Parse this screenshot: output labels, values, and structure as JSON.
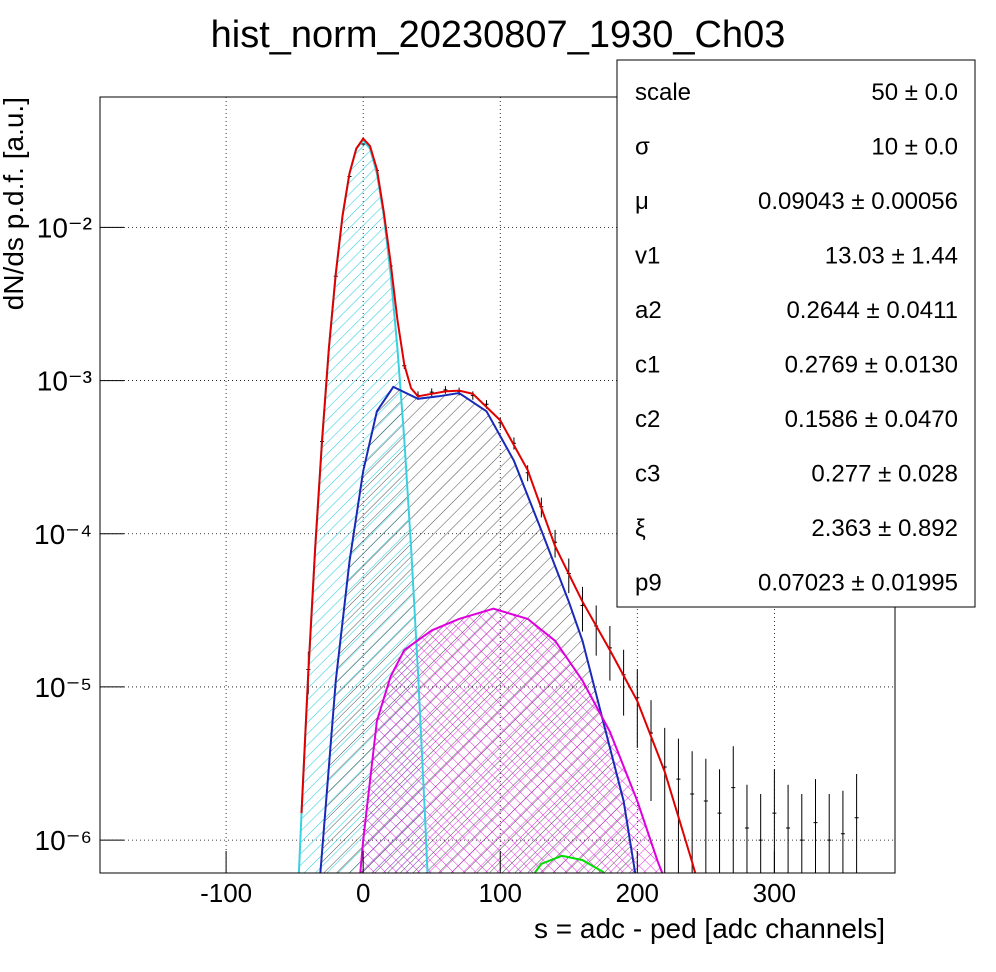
{
  "chart_data": {
    "type": "line",
    "title": "hist_norm_20230807_1930_Ch03",
    "x_label": "s = adc - ped [adc channels]",
    "y_label": "dN/ds p.d.f. [a.u.]",
    "log_y": true,
    "grid": true,
    "xlim": [
      -192,
      388
    ],
    "ylim": [
      6.1e-07,
      0.071
    ],
    "xticks": [
      -100,
      0,
      100,
      200,
      300
    ],
    "yticks": [
      {
        "value": 1e-06,
        "label": "10⁻⁶"
      },
      {
        "value": 1e-05,
        "label": "10⁻⁵"
      },
      {
        "value": 0.0001,
        "label": "10⁻⁴"
      },
      {
        "value": 0.001,
        "label": "10⁻³"
      },
      {
        "value": 0.01,
        "label": "10⁻²"
      }
    ],
    "series": [
      {
        "color": "#000000",
        "x": [
          -40,
          -30,
          -20,
          -10,
          0,
          10,
          20,
          30,
          40,
          50,
          60,
          70,
          80,
          90,
          100,
          110,
          120,
          130,
          140,
          150,
          160,
          170,
          180,
          190,
          200,
          210,
          220,
          230,
          240,
          250,
          260,
          270,
          280,
          290,
          300,
          310,
          320,
          330,
          340,
          350,
          360
        ],
        "values": [
          1.3e-05,
          0.0004,
          0.0048,
          0.0215,
          0.035,
          0.0235,
          0.0056,
          0.00125,
          0.0008,
          0.00084,
          0.00087,
          0.00085,
          0.0008,
          0.0007,
          0.00053,
          0.00039,
          0.00025,
          0.00015,
          8.8e-05,
          5.5e-05,
          3.4e-05,
          2.5e-05,
          1.8e-05,
          1.2e-05,
          8.5e-06,
          5e-06,
          3e-06,
          2.5e-06,
          2e-06,
          1.8e-06,
          1.5e-06,
          2.2e-06,
          1.2e-06,
          1e-06,
          1.5e-06,
          1.2e-06,
          1e-06,
          1.3e-06,
          1e-06,
          1.1e-06,
          1.4e-06
        ],
        "errors": [
          4e-06,
          3e-05,
          0.0001,
          0.0003,
          0.0004,
          0.0003,
          0.00012,
          6e-05,
          5e-05,
          5e-05,
          5e-05,
          5e-05,
          5e-05,
          4.5e-05,
          4e-05,
          3.5e-05,
          3e-05,
          2.2e-05,
          1.8e-05,
          1.4e-05,
          1.1e-05,
          9e-06,
          7e-06,
          5.5e-06,
          4.5e-06,
          3.2e-06,
          2.4e-06,
          2.1e-06,
          1.8e-06,
          1.6e-06,
          1.4e-06,
          1.9e-06,
          1.1e-06,
          1e-06,
          1.4e-06,
          1.1e-06,
          1e-06,
          1.2e-06,
          1e-06,
          1e-06,
          1.3e-06
        ]
      },
      {
        "color": "#3ad0e0",
        "fill": "hatch",
        "x": [
          -48,
          -45,
          -40,
          -35,
          -30,
          -25,
          -20,
          -15,
          -10,
          -5,
          0,
          5,
          10,
          15,
          20,
          25,
          30,
          35,
          40,
          45,
          48
        ],
        "values": [
          3.7e-07,
          1.48e-06,
          1.24e-05,
          8.1e-05,
          0.000411,
          0.00163,
          0.005,
          0.012,
          0.0225,
          0.0327,
          0.037,
          0.0327,
          0.0225,
          0.012,
          0.005,
          0.00163,
          0.000411,
          8.1e-05,
          1.24e-05,
          1.48e-06,
          3.7e-07
        ]
      },
      {
        "color": "#1a2ab8",
        "fill": "hatch",
        "x": [
          -32,
          -20,
          -10,
          0,
          10,
          22,
          40,
          55,
          70,
          90,
          110,
          130,
          150,
          160,
          175,
          190,
          200
        ],
        "values": [
          5e-07,
          1.1e-05,
          6.6e-05,
          0.000257,
          0.00063,
          0.00091,
          0.00076,
          0.00079,
          0.00083,
          0.00063,
          0.0003,
          0.000105,
          3.6e-05,
          2e-05,
          6e-06,
          1.8e-06,
          5e-07
        ]
      },
      {
        "color": "#dd00dd",
        "fill": "crosshatch",
        "x": [
          -3,
          0,
          10,
          20,
          30,
          50,
          70,
          95,
          120,
          140,
          160,
          180,
          200,
          215,
          222
        ],
        "values": [
          5e-07,
          1e-06,
          6e-06,
          1.17e-05,
          1.74e-05,
          2.34e-05,
          2.78e-05,
          3.24e-05,
          2.78e-05,
          2e-05,
          1.1e-05,
          5.1e-06,
          1.8e-06,
          7.2e-07,
          5e-07
        ]
      },
      {
        "color": "#00dd00",
        "x": [
          118,
          130,
          145,
          160,
          175,
          182
        ],
        "values": [
          5e-07,
          7e-07,
          7.9e-07,
          7.4e-07,
          6.2e-07,
          5e-07
        ]
      },
      {
        "color": "#e00000",
        "x": [
          -45,
          -40,
          -35,
          -30,
          -25,
          -20,
          -15,
          -10,
          -5,
          0,
          5,
          10,
          15,
          20,
          25,
          30,
          35,
          40,
          50,
          60,
          70,
          80,
          100,
          120,
          140,
          160,
          180,
          200,
          220,
          240,
          245
        ],
        "values": [
          1.5e-06,
          1.24e-05,
          8.1e-05,
          0.00041,
          0.00163,
          0.005,
          0.012,
          0.0225,
          0.0327,
          0.038,
          0.034,
          0.024,
          0.0127,
          0.0059,
          0.0025,
          0.00127,
          0.00089,
          0.00079,
          0.00082,
          0.00085,
          0.00086,
          0.00082,
          0.00055,
          0.00026,
          8.3e-05,
          3.6e-05,
          1.74e-05,
          8.1e-06,
          2.8e-06,
          7.2e-07,
          5e-07
        ]
      }
    ],
    "stats": [
      {
        "name": "scale",
        "value": "50 ± 0.0"
      },
      {
        "name": "σ",
        "value": "10 ± 0.0"
      },
      {
        "name": "μ",
        "value": "0.09043 ± 0.00056"
      },
      {
        "name": "v1",
        "value": "13.03 ± 1.44"
      },
      {
        "name": "a2",
        "value": "0.2644 ± 0.0411"
      },
      {
        "name": "c1",
        "value": "0.2769 ± 0.0130"
      },
      {
        "name": "c2",
        "value": "0.1586 ± 0.0470"
      },
      {
        "name": "c3",
        "value": "0.277 ± 0.028"
      },
      {
        "name": "ξ",
        "value": "2.363 ± 0.892"
      },
      {
        "name": "p9",
        "value": "0.07023 ± 0.01995"
      }
    ]
  }
}
